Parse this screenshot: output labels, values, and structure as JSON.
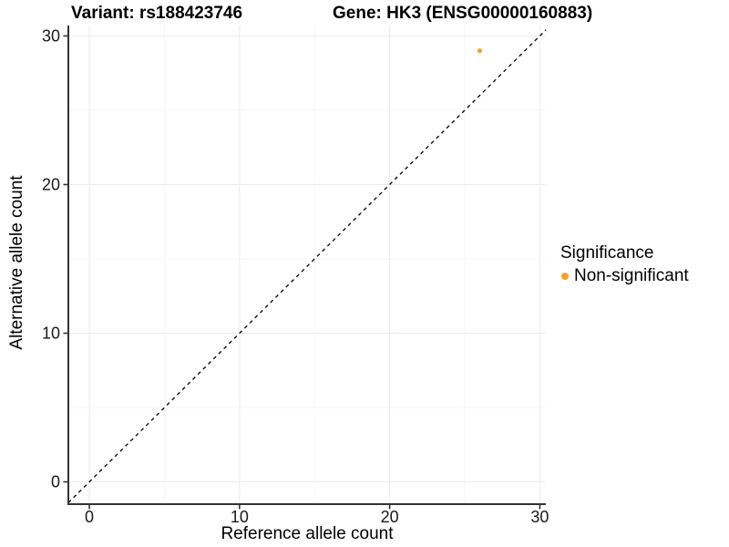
{
  "chart_data": {
    "type": "scatter",
    "titles": [
      "Variant: rs188423746",
      "Gene: HK3 (ENSG00000160883)"
    ],
    "xlabel": "Reference allele count",
    "ylabel": "Alternative allele count",
    "xlim": [
      -1.4,
      30.4
    ],
    "ylim": [
      -1.5,
      30.7
    ],
    "xticks": [
      0,
      10,
      20,
      30
    ],
    "yticks": [
      0,
      10,
      20,
      30
    ],
    "minor_xticks": [
      5,
      15,
      25
    ],
    "minor_yticks": [
      5,
      15,
      25
    ],
    "grid": true,
    "series": [
      {
        "name": "Non-significant",
        "color": "#F9A229",
        "points": [
          {
            "x": 26,
            "y": 29
          }
        ]
      }
    ],
    "abline": {
      "slope": 1,
      "intercept": 0,
      "style": "dashed",
      "color": "#000000"
    },
    "legend": {
      "title": "Significance",
      "position": "right",
      "items": [
        {
          "label": "Non-significant",
          "color": "#F9A229"
        }
      ]
    },
    "style": {
      "axis_line_color": "#333333",
      "major_grid_color": "#ECECEC",
      "minor_grid_color": "#F5F5F5",
      "tick_label_color": "#1a1a1a"
    }
  }
}
